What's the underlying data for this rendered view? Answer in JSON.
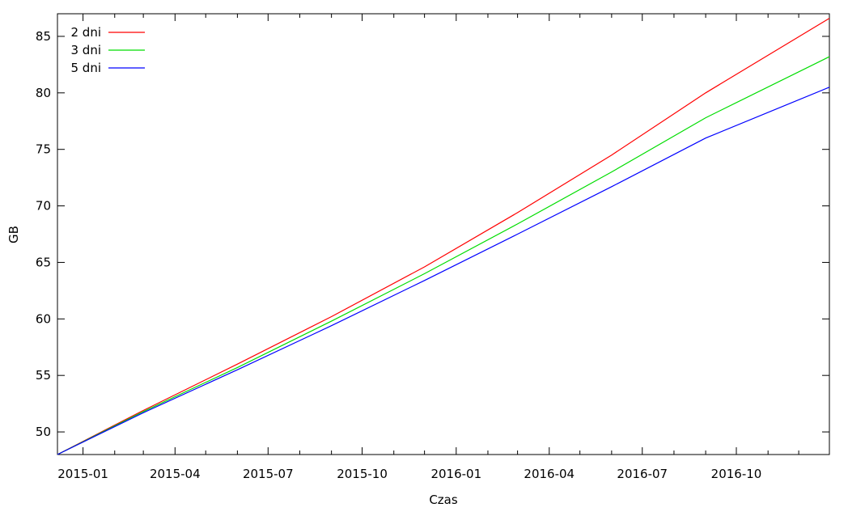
{
  "chart_data": {
    "type": "line",
    "xlabel": "Czas",
    "ylabel": "GB",
    "xlim": [
      "2014-12-07",
      "2016-12-31"
    ],
    "ylim": [
      48,
      87
    ],
    "x_ticks": [
      {
        "date": "2015-01-01",
        "label": "2015-01"
      },
      {
        "date": "2015-04-01",
        "label": "2015-04"
      },
      {
        "date": "2015-07-01",
        "label": "2015-07"
      },
      {
        "date": "2015-10-01",
        "label": "2015-10"
      },
      {
        "date": "2016-01-01",
        "label": "2016-01"
      },
      {
        "date": "2016-04-01",
        "label": "2016-04"
      },
      {
        "date": "2016-07-01",
        "label": "2016-07"
      },
      {
        "date": "2016-10-01",
        "label": "2016-10"
      }
    ],
    "y_ticks": [
      50,
      55,
      60,
      65,
      70,
      75,
      80,
      85
    ],
    "grid": false,
    "legend": "top-left",
    "x": [
      "2014-12-07",
      "2015-03-01",
      "2015-06-01",
      "2015-09-01",
      "2015-12-01",
      "2016-03-01",
      "2016-06-01",
      "2016-09-01",
      "2016-12-31"
    ],
    "series": [
      {
        "name": "2 dni",
        "color": "#ff0000",
        "values": [
          48.0,
          51.9,
          56.0,
          60.2,
          64.6,
          69.4,
          74.5,
          80.0,
          86.6
        ]
      },
      {
        "name": "3 dni",
        "color": "#00dd00",
        "values": [
          48.0,
          51.8,
          55.7,
          59.8,
          64.0,
          68.4,
          73.0,
          77.8,
          83.2
        ]
      },
      {
        "name": "5 dni",
        "color": "#0000ff",
        "values": [
          48.0,
          51.7,
          55.5,
          59.4,
          63.4,
          67.5,
          71.7,
          76.0,
          80.5
        ]
      }
    ]
  }
}
